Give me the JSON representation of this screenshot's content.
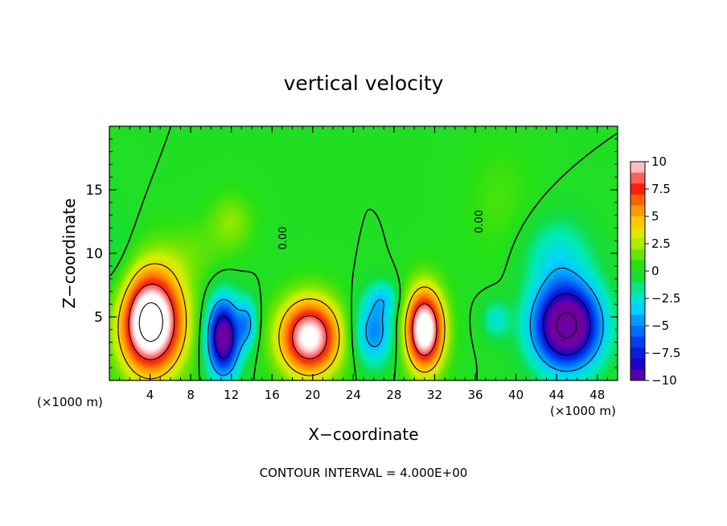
{
  "chart_data": {
    "type": "heatmap",
    "title": "vertical velocity",
    "xlabel": "X−coordinate",
    "ylabel": "Z−coordinate",
    "x_unit_left": "(×1000 m)",
    "x_unit_right": "(×1000 m)",
    "footer": "CONTOUR INTERVAL = 4.000E+00",
    "xlim": [
      0,
      50
    ],
    "ylim": [
      0,
      20
    ],
    "x_ticks": [
      4,
      8,
      12,
      16,
      20,
      24,
      28,
      32,
      36,
      40,
      44,
      48
    ],
    "x_tick_labels": [
      "4",
      "8",
      "12",
      "16",
      "20",
      "24",
      "28",
      "32",
      "36",
      "40",
      "44",
      "48"
    ],
    "y_ticks": [
      5,
      10,
      15
    ],
    "y_tick_labels": [
      "5",
      "10",
      "15"
    ],
    "colorbar": {
      "range": [
        -10,
        10
      ],
      "ticks": [
        10,
        7.5,
        5,
        2.5,
        0,
        -2.5,
        -5,
        -7.5,
        -10
      ],
      "tick_labels": [
        "10",
        "7.5",
        "5",
        "2.5",
        "0",
        "−2.5",
        "−5",
        "−7.5",
        "−10"
      ]
    },
    "contour_labels": [
      {
        "text": "0.00",
        "x": 17.4,
        "y": 11.2
      },
      {
        "text": "0.00",
        "x": 36.7,
        "y": 12.5
      }
    ],
    "cells": [
      {
        "x": 4.0,
        "z": 4.6,
        "sx": 3.2,
        "sz": 4.0,
        "w": 14
      },
      {
        "x": 11.2,
        "z": 3.4,
        "sx": 1.6,
        "sz": 3.0,
        "w": -11
      },
      {
        "x": 13.6,
        "z": 4.5,
        "sx": 1.0,
        "sz": 2.0,
        "w": -4
      },
      {
        "x": 19.7,
        "z": 3.4,
        "sx": 3.0,
        "sz": 3.0,
        "w": 11
      },
      {
        "x": 26.0,
        "z": 3.8,
        "sx": 2.0,
        "sz": 2.6,
        "w": -5
      },
      {
        "x": 31.0,
        "z": 4.0,
        "sx": 1.9,
        "sz": 3.2,
        "w": 12
      },
      {
        "x": 38.0,
        "z": 4.8,
        "sx": 1.3,
        "sz": 1.5,
        "w": -2.5
      },
      {
        "x": 45.0,
        "z": 4.3,
        "sx": 3.3,
        "sz": 3.3,
        "w": -13
      },
      {
        "x": 12.0,
        "z": 12.5,
        "sx": 2.2,
        "sz": 2.2,
        "w": 2
      },
      {
        "x": 8.0,
        "z": 10.0,
        "sx": 3.5,
        "sz": 2.5,
        "w": 1.2
      },
      {
        "x": 44.0,
        "z": 10.0,
        "sx": 3.5,
        "sz": 3.0,
        "w": -2.5
      },
      {
        "x": 38.5,
        "z": 14.0,
        "sx": 3.5,
        "sz": 5.0,
        "w": 1.0
      },
      {
        "x": 1.0,
        "z": 7.0,
        "sx": 2.0,
        "sz": 5.0,
        "w": -1.8
      },
      {
        "x": 27.0,
        "z": 6.5,
        "sx": 1.6,
        "sz": 1.4,
        "w": -2.5
      }
    ]
  }
}
